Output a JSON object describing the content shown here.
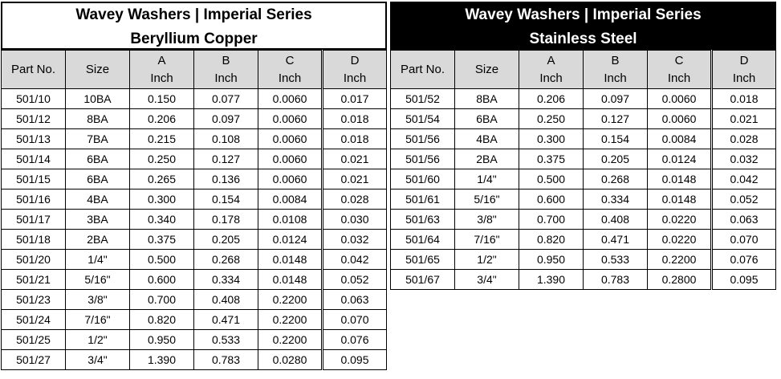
{
  "tables": [
    {
      "title": [
        "Wavey Washers | Imperial Series",
        "Beryllium Copper"
      ],
      "headers": [
        [
          "Part No."
        ],
        [
          "Size"
        ],
        [
          "A",
          "Inch"
        ],
        [
          "B",
          "Inch"
        ],
        [
          "C",
          "Inch"
        ],
        [
          "D",
          "Inch"
        ]
      ],
      "rows": [
        [
          "501/10",
          "10BA",
          "0.150",
          "0.077",
          "0.0060",
          "0.017"
        ],
        [
          "501/12",
          "8BA",
          "0.206",
          "0.097",
          "0.0060",
          "0.018"
        ],
        [
          "501/13",
          "7BA",
          "0.215",
          "0.108",
          "0.0060",
          "0.018"
        ],
        [
          "501/14",
          "6BA",
          "0.250",
          "0.127",
          "0.0060",
          "0.021"
        ],
        [
          "501/15",
          "6BA",
          "0.265",
          "0.136",
          "0.0060",
          "0.021"
        ],
        [
          "501/16",
          "4BA",
          "0.300",
          "0.154",
          "0.0084",
          "0.028"
        ],
        [
          "501/17",
          "3BA",
          "0.340",
          "0.178",
          "0.0108",
          "0.030"
        ],
        [
          "501/18",
          "2BA",
          "0.375",
          "0.205",
          "0.0124",
          "0.032"
        ],
        [
          "501/20",
          "1/4\"",
          "0.500",
          "0.268",
          "0.0148",
          "0.042"
        ],
        [
          "501/21",
          "5/16\"",
          "0.600",
          "0.334",
          "0.0148",
          "0.052"
        ],
        [
          "501/23",
          "3/8\"",
          "0.700",
          "0.408",
          "0.2200",
          "0.063"
        ],
        [
          "501/24",
          "7/16\"",
          "0.820",
          "0.471",
          "0.2200",
          "0.070"
        ],
        [
          "501/25",
          "1/2\"",
          "0.950",
          "0.533",
          "0.2200",
          "0.076"
        ],
        [
          "501/27",
          "3/4\"",
          "1.390",
          "0.783",
          "0.0280",
          "0.095"
        ]
      ]
    },
    {
      "title": [
        "Wavey Washers | Imperial Series",
        "Stainless Steel"
      ],
      "headers": [
        [
          "Part No."
        ],
        [
          "Size"
        ],
        [
          "A",
          "Inch"
        ],
        [
          "B",
          "Inch"
        ],
        [
          "C",
          "Inch"
        ],
        [
          "D",
          "Inch"
        ]
      ],
      "rows": [
        [
          "501/52",
          "8BA",
          "0.206",
          "0.097",
          "0.0060",
          "0.018"
        ],
        [
          "501/54",
          "6BA",
          "0.250",
          "0.127",
          "0.0060",
          "0.021"
        ],
        [
          "501/56",
          "4BA",
          "0.300",
          "0.154",
          "0.0084",
          "0.028"
        ],
        [
          "501/56",
          "2BA",
          "0.375",
          "0.205",
          "0.0124",
          "0.032"
        ],
        [
          "501/60",
          "1/4\"",
          "0.500",
          "0.268",
          "0.0148",
          "0.042"
        ],
        [
          "501/61",
          "5/16\"",
          "0.600",
          "0.334",
          "0.0148",
          "0.052"
        ],
        [
          "501/63",
          "3/8\"",
          "0.700",
          "0.408",
          "0.0220",
          "0.063"
        ],
        [
          "501/64",
          "7/16\"",
          "0.820",
          "0.471",
          "0.0220",
          "0.070"
        ],
        [
          "501/65",
          "1/2\"",
          "0.950",
          "0.533",
          "0.2200",
          "0.076"
        ],
        [
          "501/67",
          "3/4\"",
          "1.390",
          "0.783",
          "0.2800",
          "0.095"
        ]
      ]
    }
  ]
}
